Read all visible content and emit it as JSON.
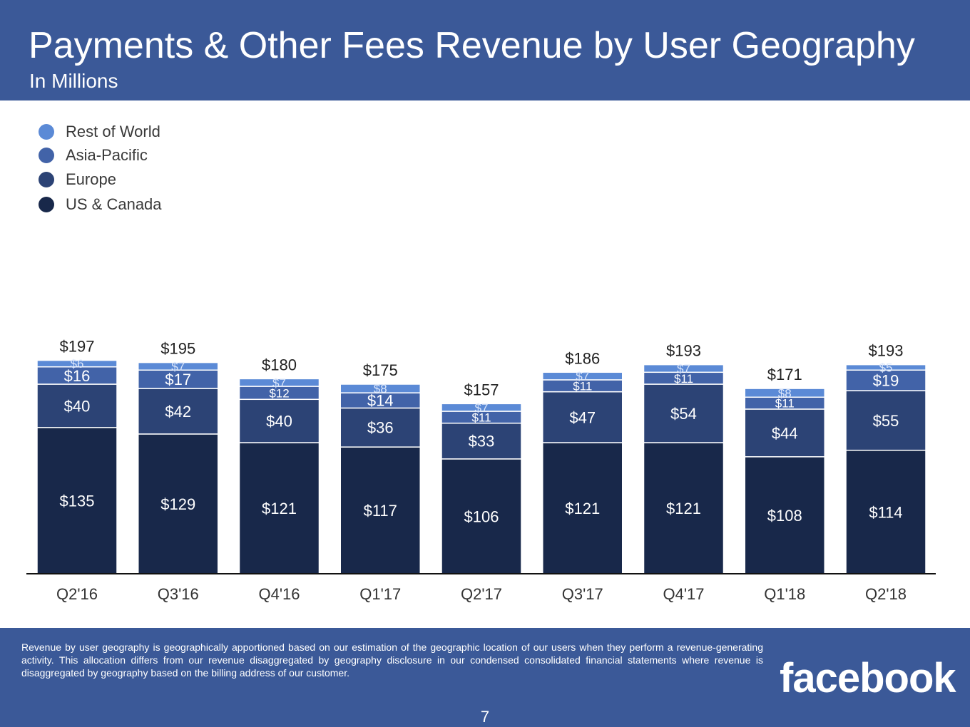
{
  "header": {
    "title": "Payments & Other Fees Revenue by User Geography",
    "subtitle": "In Millions"
  },
  "legend": [
    {
      "label": "Rest of World",
      "color": "#5b8ad6"
    },
    {
      "label": "Asia-Pacific",
      "color": "#4263a8"
    },
    {
      "label": "Europe",
      "color": "#2c4375"
    },
    {
      "label": "US & Canada",
      "color": "#18284a"
    }
  ],
  "chart_data": {
    "type": "bar",
    "stacked": true,
    "categories": [
      "Q2'16",
      "Q3'16",
      "Q4'16",
      "Q1'17",
      "Q2'17",
      "Q3'17",
      "Q4'17",
      "Q1'18",
      "Q2'18"
    ],
    "series": [
      {
        "name": "US & Canada",
        "color": "#18284a",
        "values": [
          135,
          129,
          121,
          117,
          106,
          121,
          121,
          108,
          114
        ]
      },
      {
        "name": "Europe",
        "color": "#2c4375",
        "values": [
          40,
          42,
          40,
          36,
          33,
          47,
          54,
          44,
          55
        ]
      },
      {
        "name": "Asia-Pacific",
        "color": "#4263a8",
        "values": [
          16,
          17,
          12,
          14,
          11,
          11,
          11,
          11,
          19
        ]
      },
      {
        "name": "Rest of World",
        "color": "#5b8ad6",
        "values": [
          6,
          7,
          7,
          8,
          7,
          7,
          7,
          8,
          5
        ]
      }
    ],
    "totals": [
      197,
      195,
      180,
      175,
      157,
      186,
      193,
      171,
      193
    ],
    "value_prefix": "$",
    "grid": false,
    "legend_position": "top-left"
  },
  "footer": {
    "footnote": "Revenue by user geography is geographically apportioned based on our estimation of the geographic location of our users when they perform a revenue-generating activity. This allocation differs from our revenue disaggregated by geography disclosure in our condensed consolidated financial statements where revenue is disaggregated by geography based on the billing address of our customer.",
    "logo": "facebook",
    "page_number": "7"
  }
}
